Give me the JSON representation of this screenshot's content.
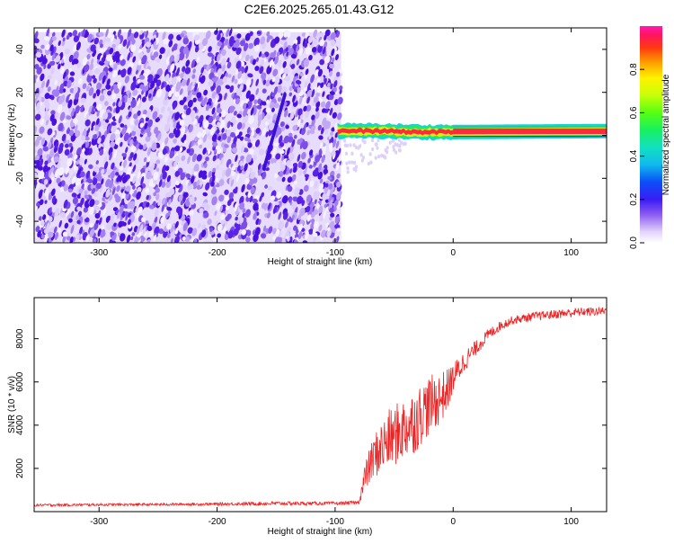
{
  "title": "C2E6.2025.265.01.43.G12",
  "chart_data": [
    {
      "type": "heatmap",
      "title": "C2E6.2025.265.01.43.G12",
      "xlabel": "Height of straight line (km)",
      "ylabel": "Frequency (Hz)",
      "xlim": [
        -355,
        130
      ],
      "ylim": [
        -50,
        50
      ],
      "xticks": [
        -300,
        -200,
        -100,
        0,
        100
      ],
      "xtick_labels": [
        "-300",
        "-200",
        "-100",
        "0",
        "100"
      ],
      "yticks": [
        -40,
        -20,
        0,
        20,
        40
      ],
      "ytick_labels": [
        "-40",
        "-20",
        "0",
        "20",
        "40"
      ],
      "noise_region_x": [
        -355,
        -95
      ],
      "noise_region_y": [
        -50,
        48
      ],
      "signal_band": {
        "x": [
          -98,
          130
        ],
        "center_freq": [
          2,
          2,
          1.5,
          1.5,
          1.5,
          2
        ],
        "center_x": [
          -98,
          -60,
          -30,
          -10,
          0,
          130
        ],
        "half_width": 2.5
      },
      "colorbar": {
        "label": "Normalized spectral amplitude",
        "range": [
          0,
          1
        ],
        "ticks": [
          0.0,
          0.2,
          0.4,
          0.6,
          0.8
        ],
        "tick_labels": [
          "0.0",
          "0.2",
          "0.4",
          "0.6",
          "0.8"
        ]
      }
    },
    {
      "type": "line",
      "title": "",
      "xlabel": "Height of straight line (km)",
      "ylabel": "SNR (10 * v/v)",
      "xlim": [
        -355,
        130
      ],
      "ylim": [
        0,
        9900
      ],
      "xticks": [
        -300,
        -200,
        -100,
        0,
        100
      ],
      "xtick_labels": [
        "-300",
        "-200",
        "-100",
        "0",
        "100"
      ],
      "yticks": [
        2000,
        4000,
        6000,
        8000
      ],
      "ytick_labels": [
        "2000",
        "4000",
        "6000",
        "8000"
      ],
      "series": [
        {
          "name": "SNR",
          "color": "#ee2222",
          "x": [
            -355,
            -300,
            -250,
            -200,
            -150,
            -100,
            -80,
            -75,
            -70,
            -65,
            -60,
            -55,
            -50,
            -45,
            -40,
            -35,
            -30,
            -25,
            -20,
            -15,
            -10,
            -5,
            0,
            10,
            20,
            30,
            40,
            50,
            60,
            70,
            80,
            90,
            100,
            110,
            120,
            130
          ],
          "values": [
            300,
            320,
            330,
            350,
            380,
            380,
            420,
            1500,
            2200,
            2700,
            3000,
            3300,
            3500,
            3700,
            3900,
            4100,
            4300,
            4700,
            4900,
            5100,
            5300,
            5600,
            6200,
            7000,
            7600,
            8200,
            8600,
            8850,
            8950,
            9050,
            9100,
            9150,
            9200,
            9250,
            9250,
            9300
          ],
          "noise": [
            60,
            60,
            60,
            70,
            90,
            80,
            80,
            700,
            900,
            1100,
            1300,
            1400,
            1400,
            1500,
            1500,
            1500,
            1500,
            1400,
            1400,
            1300,
            1200,
            1000,
            700,
            500,
            350,
            280,
            220,
            200,
            200,
            200,
            200,
            220,
            220,
            200,
            200,
            200
          ]
        }
      ]
    }
  ],
  "colors": {
    "noise_dark": "#5a1fe6",
    "noise_light": "#c9b2f5",
    "signal_core": "#ff2a3c",
    "signal_edge": "#16d4d4",
    "axis": "#000000"
  }
}
